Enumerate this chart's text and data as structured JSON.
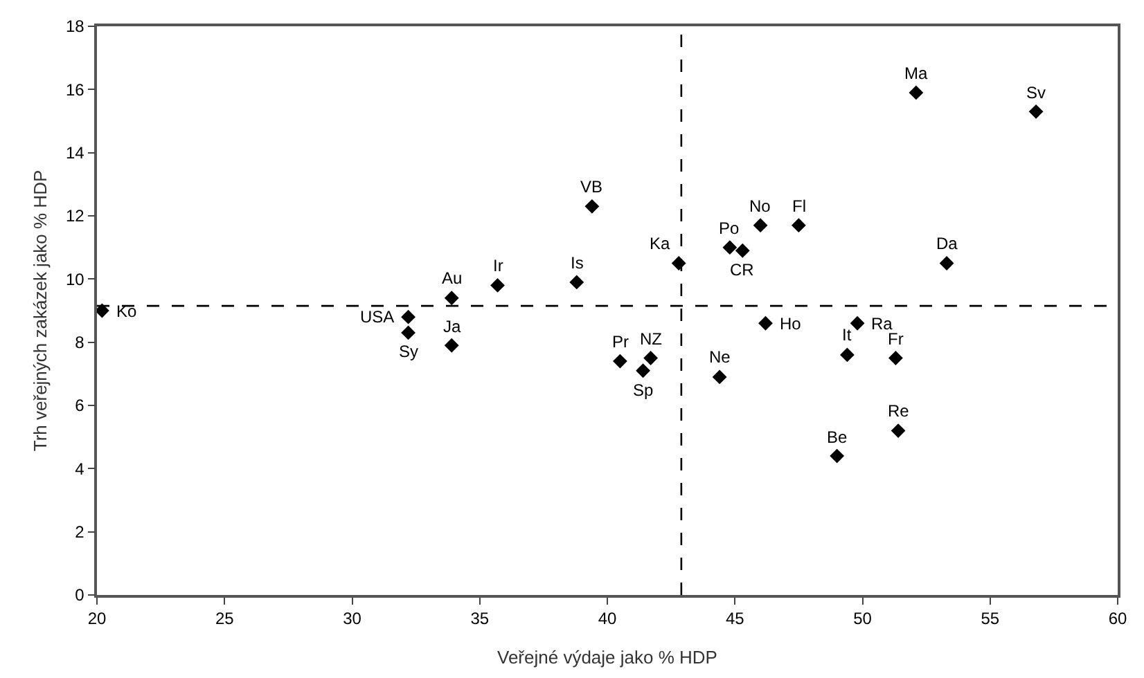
{
  "chart_data": {
    "type": "scatter",
    "xlabel": "Veřejné výdaje jako % HDP",
    "ylabel": "Trh veřejných zakázek jako % HDP",
    "x": [
      20.2,
      32.2,
      32.2,
      33.9,
      33.9,
      35.7,
      38.8,
      39.4,
      40.5,
      41.4,
      41.7,
      42.8,
      44.8,
      45.3,
      44.4,
      46.0,
      46.2,
      47.5,
      49.0,
      49.4,
      49.8,
      51.3,
      51.4,
      52.1,
      53.3,
      56.8
    ],
    "values": [
      9.0,
      8.8,
      8.3,
      9.4,
      7.9,
      9.8,
      9.9,
      12.3,
      7.4,
      7.1,
      7.5,
      10.5,
      11.0,
      10.9,
      6.9,
      11.7,
      8.6,
      11.7,
      4.4,
      7.6,
      8.6,
      7.5,
      5.2,
      15.9,
      10.5,
      15.3
    ],
    "color": "#000000",
    "marker": "diamond",
    "grid": false,
    "xlim": [
      20,
      60
    ],
    "xticks": [
      20,
      25,
      30,
      35,
      40,
      45,
      50,
      55,
      60
    ],
    "ylim": [
      0,
      18
    ],
    "yticks": [
      0,
      2,
      4,
      6,
      8,
      10,
      12,
      14,
      16,
      18
    ],
    "ref_lines": [
      {
        "axis": "x",
        "value": 42.9,
        "line_style": "dashed",
        "color": "#000000"
      },
      {
        "axis": "y",
        "value": 9.15,
        "line_style": "dashed",
        "color": "#000000"
      }
    ],
    "annotations": [
      {
        "text": "Ko",
        "x": 20.2,
        "y": 9.0
      },
      {
        "text": "USA",
        "x": 32.2,
        "y": 8.8
      },
      {
        "text": "Sy",
        "x": 32.2,
        "y": 8.3
      },
      {
        "text": "Au",
        "x": 33.9,
        "y": 9.4
      },
      {
        "text": "Ja",
        "x": 33.9,
        "y": 7.9
      },
      {
        "text": "Ir",
        "x": 35.7,
        "y": 9.8
      },
      {
        "text": "Is",
        "x": 38.8,
        "y": 9.9
      },
      {
        "text": "VB",
        "x": 39.4,
        "y": 12.3
      },
      {
        "text": "Pr",
        "x": 40.5,
        "y": 7.4
      },
      {
        "text": "Sp",
        "x": 41.4,
        "y": 7.1
      },
      {
        "text": "NZ",
        "x": 41.7,
        "y": 7.5
      },
      {
        "text": "Ka",
        "x": 42.8,
        "y": 10.5
      },
      {
        "text": "Po",
        "x": 44.8,
        "y": 11.0
      },
      {
        "text": "CR",
        "x": 45.3,
        "y": 10.9
      },
      {
        "text": "Ne",
        "x": 44.4,
        "y": 6.9
      },
      {
        "text": "No",
        "x": 46.0,
        "y": 11.7
      },
      {
        "text": "Ho",
        "x": 46.2,
        "y": 8.6
      },
      {
        "text": "Fl",
        "x": 47.5,
        "y": 11.7
      },
      {
        "text": "Be",
        "x": 49.0,
        "y": 4.4
      },
      {
        "text": "It",
        "x": 49.4,
        "y": 7.6
      },
      {
        "text": "Ra",
        "x": 49.8,
        "y": 8.6
      },
      {
        "text": "Fr",
        "x": 51.3,
        "y": 7.5
      },
      {
        "text": "Re",
        "x": 51.4,
        "y": 5.2
      },
      {
        "text": "Ma",
        "x": 52.1,
        "y": 15.9
      },
      {
        "text": "Da",
        "x": 53.3,
        "y": 10.5
      },
      {
        "text": "Sv",
        "x": 56.8,
        "y": 15.3
      }
    ]
  }
}
